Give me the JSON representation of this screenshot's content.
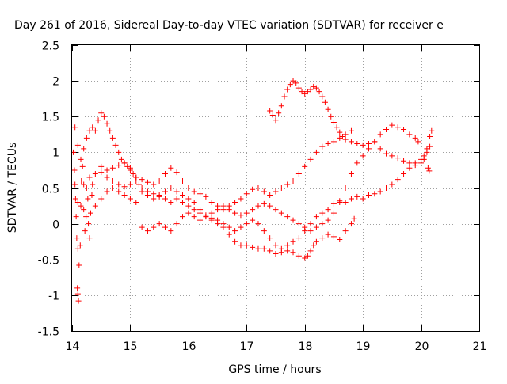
{
  "chart_data": {
    "type": "scatter",
    "title": "Day 261 of 2016, Sidereal Day-to-day VTEC variation (SDTVAR) for receiver e",
    "xlabel": "GPS time / hours",
    "ylabel": "SDTVAR / TECUs",
    "xlim": [
      14,
      21
    ],
    "ylim": [
      -1.5,
      2.5
    ],
    "x_ticks": [
      14,
      15,
      16,
      17,
      18,
      19,
      20,
      21
    ],
    "y_ticks": [
      -1.5,
      -1,
      -0.5,
      0,
      0.5,
      1,
      1.5,
      2,
      2.5
    ],
    "x_tick_labels": [
      "14",
      "15",
      "16",
      "17",
      "18",
      "19",
      "20",
      "21"
    ],
    "y_tick_labels": [
      "-1.5",
      "-1",
      "-0.5",
      "0",
      "0.5",
      "1",
      "1.5",
      "2",
      "2.5"
    ],
    "grid": true,
    "marker": "plus",
    "color": "#ff0000",
    "series": [
      {
        "points": [
          [
            14.05,
            1.35
          ],
          [
            14.1,
            1.1
          ],
          [
            14.15,
            0.9
          ],
          [
            14.2,
            1.05
          ],
          [
            14.25,
            1.2
          ],
          [
            14.3,
            1.3
          ],
          [
            14.35,
            1.35
          ],
          [
            14.4,
            1.3
          ],
          [
            14.45,
            1.45
          ],
          [
            14.5,
            1.55
          ],
          [
            14.55,
            1.5
          ],
          [
            14.6,
            1.4
          ],
          [
            14.65,
            1.3
          ],
          [
            14.7,
            1.2
          ],
          [
            14.75,
            1.1
          ],
          [
            14.8,
            1.0
          ],
          [
            14.85,
            0.9
          ],
          [
            14.9,
            0.85
          ],
          [
            14.95,
            0.8
          ],
          [
            15.0,
            0.75
          ],
          [
            15.05,
            0.7
          ],
          [
            15.1,
            0.65
          ],
          [
            15.15,
            0.55
          ],
          [
            15.2,
            0.45
          ],
          [
            15.3,
            0.4
          ],
          [
            15.4,
            0.35
          ],
          [
            15.5,
            0.4
          ],
          [
            15.6,
            0.45
          ],
          [
            15.7,
            0.5
          ],
          [
            15.8,
            0.45
          ],
          [
            15.9,
            0.4
          ],
          [
            16.0,
            0.35
          ],
          [
            16.1,
            0.3
          ],
          [
            16.2,
            0.2
          ],
          [
            16.3,
            0.1
          ],
          [
            16.4,
            0.05
          ],
          [
            16.5,
            0.0
          ],
          [
            16.6,
            -0.05
          ],
          [
            16.7,
            -0.15
          ],
          [
            16.8,
            -0.25
          ],
          [
            16.9,
            -0.3
          ],
          [
            17.0,
            -0.3
          ],
          [
            17.1,
            -0.33
          ],
          [
            17.2,
            -0.35
          ],
          [
            17.3,
            -0.35
          ],
          [
            17.4,
            -0.38
          ],
          [
            17.5,
            -0.42
          ],
          [
            17.6,
            -0.4
          ],
          [
            17.7,
            -0.38
          ],
          [
            17.8,
            -0.4
          ],
          [
            17.9,
            -0.45
          ],
          [
            18.0,
            -0.48
          ],
          [
            18.05,
            -0.45
          ],
          [
            18.1,
            -0.38
          ],
          [
            18.15,
            -0.3
          ],
          [
            18.2,
            -0.25
          ],
          [
            18.3,
            -0.2
          ],
          [
            18.4,
            -0.15
          ],
          [
            18.5,
            -0.18
          ],
          [
            18.6,
            -0.22
          ],
          [
            18.7,
            -0.1
          ],
          [
            18.8,
            0.0
          ],
          [
            18.85,
            0.07
          ]
        ]
      },
      {
        "points": [
          [
            14.1,
            0.3
          ],
          [
            14.2,
            0.55
          ],
          [
            14.3,
            0.65
          ],
          [
            14.4,
            0.7
          ],
          [
            14.5,
            0.72
          ],
          [
            14.6,
            0.65
          ],
          [
            14.7,
            0.6
          ],
          [
            14.8,
            0.55
          ],
          [
            14.9,
            0.52
          ],
          [
            15.0,
            0.55
          ],
          [
            15.1,
            0.6
          ],
          [
            15.2,
            0.62
          ],
          [
            15.3,
            0.58
          ],
          [
            15.4,
            0.55
          ],
          [
            15.5,
            0.6
          ],
          [
            15.6,
            0.7
          ],
          [
            15.7,
            0.78
          ],
          [
            15.8,
            0.72
          ],
          [
            15.9,
            0.6
          ],
          [
            16.0,
            0.5
          ],
          [
            16.1,
            0.45
          ],
          [
            16.2,
            0.42
          ],
          [
            16.3,
            0.38
          ],
          [
            16.4,
            0.3
          ],
          [
            16.5,
            0.25
          ],
          [
            16.6,
            0.2
          ],
          [
            16.7,
            0.25
          ],
          [
            16.8,
            0.3
          ],
          [
            16.9,
            0.35
          ],
          [
            17.0,
            0.42
          ],
          [
            17.1,
            0.48
          ],
          [
            17.2,
            0.5
          ],
          [
            17.3,
            0.45
          ],
          [
            17.4,
            0.4
          ],
          [
            17.5,
            0.45
          ],
          [
            17.6,
            0.5
          ],
          [
            17.7,
            0.55
          ],
          [
            17.8,
            0.6
          ],
          [
            17.9,
            0.7
          ],
          [
            18.0,
            0.8
          ],
          [
            18.1,
            0.9
          ],
          [
            18.2,
            1.0
          ],
          [
            18.3,
            1.08
          ],
          [
            18.4,
            1.12
          ],
          [
            18.5,
            1.15
          ],
          [
            18.6,
            1.2
          ],
          [
            18.7,
            1.25
          ],
          [
            18.8,
            1.3
          ]
        ]
      },
      {
        "points": [
          [
            14.4,
            0.25
          ],
          [
            14.5,
            0.35
          ],
          [
            14.6,
            0.45
          ],
          [
            14.7,
            0.5
          ],
          [
            14.8,
            0.45
          ],
          [
            14.9,
            0.4
          ],
          [
            15.0,
            0.35
          ],
          [
            15.1,
            0.3
          ],
          [
            15.2,
            -0.05
          ],
          [
            15.3,
            -0.1
          ],
          [
            15.4,
            -0.05
          ],
          [
            15.5,
            0.0
          ],
          [
            15.6,
            -0.05
          ],
          [
            15.7,
            -0.1
          ],
          [
            15.8,
            0.0
          ],
          [
            15.9,
            0.1
          ],
          [
            16.0,
            0.15
          ],
          [
            16.1,
            0.1
          ],
          [
            16.2,
            0.05
          ],
          [
            16.3,
            0.1
          ],
          [
            16.4,
            0.15
          ],
          [
            16.5,
            0.2
          ],
          [
            16.6,
            0.25
          ],
          [
            16.7,
            0.2
          ],
          [
            16.8,
            0.15
          ],
          [
            16.9,
            0.12
          ],
          [
            17.0,
            0.15
          ],
          [
            17.1,
            0.2
          ],
          [
            17.2,
            0.25
          ],
          [
            17.3,
            0.28
          ],
          [
            17.4,
            0.25
          ],
          [
            17.5,
            0.2
          ],
          [
            17.6,
            0.15
          ],
          [
            17.7,
            0.1
          ],
          [
            17.8,
            0.05
          ],
          [
            17.9,
            0.0
          ],
          [
            18.0,
            -0.05
          ],
          [
            18.1,
            -0.1
          ],
          [
            18.2,
            -0.05
          ],
          [
            18.3,
            0.0
          ],
          [
            18.4,
            0.05
          ],
          [
            18.5,
            0.15
          ],
          [
            18.6,
            0.3
          ],
          [
            18.7,
            0.5
          ],
          [
            18.8,
            0.7
          ],
          [
            18.9,
            0.85
          ],
          [
            19.0,
            0.95
          ],
          [
            19.1,
            1.05
          ],
          [
            19.2,
            1.15
          ],
          [
            19.3,
            1.25
          ],
          [
            19.4,
            1.32
          ],
          [
            19.5,
            1.38
          ],
          [
            19.6,
            1.35
          ],
          [
            19.7,
            1.32
          ],
          [
            19.8,
            1.25
          ],
          [
            19.9,
            1.2
          ],
          [
            19.95,
            1.15
          ]
        ]
      },
      {
        "points": [
          [
            14.5,
            0.8
          ],
          [
            14.6,
            0.75
          ],
          [
            14.7,
            0.78
          ],
          [
            14.8,
            0.82
          ],
          [
            14.9,
            0.85
          ],
          [
            15.0,
            0.78
          ],
          [
            15.1,
            0.65
          ],
          [
            15.2,
            0.5
          ],
          [
            15.3,
            0.45
          ],
          [
            15.4,
            0.42
          ],
          [
            15.5,
            0.38
          ],
          [
            15.6,
            0.35
          ],
          [
            15.7,
            0.3
          ],
          [
            15.8,
            0.35
          ],
          [
            15.9,
            0.3
          ],
          [
            16.0,
            0.25
          ],
          [
            16.1,
            0.2
          ],
          [
            16.2,
            0.15
          ],
          [
            16.3,
            0.12
          ],
          [
            16.4,
            0.08
          ],
          [
            16.5,
            0.05
          ],
          [
            16.6,
            0.0
          ],
          [
            16.7,
            -0.05
          ],
          [
            16.8,
            -0.1
          ],
          [
            16.9,
            -0.05
          ],
          [
            17.0,
            0.0
          ],
          [
            17.1,
            0.05
          ],
          [
            17.2,
            0.0
          ],
          [
            17.3,
            -0.1
          ],
          [
            17.4,
            -0.2
          ],
          [
            17.5,
            -0.3
          ],
          [
            17.6,
            -0.35
          ],
          [
            17.7,
            -0.3
          ],
          [
            17.8,
            -0.25
          ],
          [
            17.9,
            -0.2
          ],
          [
            18.0,
            -0.1
          ],
          [
            18.1,
            0.0
          ],
          [
            18.2,
            0.1
          ],
          [
            18.3,
            0.15
          ],
          [
            18.4,
            0.2
          ],
          [
            18.5,
            0.28
          ],
          [
            18.6,
            0.32
          ],
          [
            18.7,
            0.3
          ],
          [
            18.8,
            0.35
          ],
          [
            18.9,
            0.38
          ],
          [
            19.0,
            0.35
          ],
          [
            19.1,
            0.4
          ],
          [
            19.2,
            0.42
          ],
          [
            19.3,
            0.45
          ],
          [
            19.4,
            0.5
          ],
          [
            19.5,
            0.55
          ],
          [
            19.6,
            0.62
          ],
          [
            19.7,
            0.7
          ],
          [
            19.8,
            0.78
          ],
          [
            19.9,
            0.85
          ],
          [
            20.0,
            0.9
          ],
          [
            20.05,
            0.95
          ],
          [
            20.1,
            1.0
          ],
          [
            20.15,
            1.08
          ]
        ]
      },
      {
        "points": [
          [
            17.4,
            1.58
          ],
          [
            17.45,
            1.52
          ],
          [
            17.5,
            1.45
          ],
          [
            17.55,
            1.55
          ],
          [
            17.6,
            1.65
          ],
          [
            17.65,
            1.78
          ],
          [
            17.7,
            1.88
          ],
          [
            17.75,
            1.95
          ],
          [
            17.8,
            2.0
          ],
          [
            17.85,
            1.97
          ],
          [
            17.9,
            1.9
          ],
          [
            17.95,
            1.85
          ],
          [
            18.0,
            1.82
          ],
          [
            18.05,
            1.85
          ],
          [
            18.1,
            1.88
          ],
          [
            18.15,
            1.92
          ],
          [
            18.2,
            1.9
          ],
          [
            18.25,
            1.85
          ],
          [
            18.3,
            1.78
          ],
          [
            18.35,
            1.7
          ],
          [
            18.4,
            1.6
          ],
          [
            18.45,
            1.5
          ],
          [
            18.5,
            1.42
          ],
          [
            18.55,
            1.35
          ],
          [
            18.6,
            1.28
          ],
          [
            18.65,
            1.22
          ],
          [
            18.7,
            1.18
          ],
          [
            18.8,
            1.15
          ],
          [
            18.9,
            1.12
          ],
          [
            19.0,
            1.1
          ],
          [
            19.1,
            1.12
          ],
          [
            19.2,
            1.15
          ],
          [
            19.3,
            1.05
          ],
          [
            19.4,
            0.98
          ],
          [
            19.5,
            0.95
          ],
          [
            19.6,
            0.92
          ],
          [
            19.7,
            0.88
          ],
          [
            19.8,
            0.85
          ],
          [
            19.9,
            0.82
          ],
          [
            20.0,
            0.85
          ],
          [
            20.05,
            0.9
          ],
          [
            20.1,
            1.05
          ],
          [
            20.15,
            1.22
          ],
          [
            20.18,
            1.3
          ],
          [
            20.12,
            0.78
          ],
          [
            20.14,
            0.74
          ]
        ]
      },
      {
        "points": [
          [
            14.02,
            1.0
          ],
          [
            14.04,
            0.75
          ],
          [
            14.05,
            0.55
          ],
          [
            14.06,
            0.35
          ],
          [
            14.07,
            0.1
          ],
          [
            14.08,
            -0.2
          ],
          [
            14.1,
            -0.35
          ],
          [
            14.09,
            -0.9
          ],
          [
            14.1,
            -0.98
          ],
          [
            14.11,
            -1.08
          ],
          [
            14.12,
            -0.58
          ],
          [
            14.14,
            -0.3
          ],
          [
            14.15,
            0.25
          ],
          [
            14.16,
            0.6
          ],
          [
            14.18,
            0.8
          ],
          [
            14.2,
            0.2
          ],
          [
            14.22,
            -0.1
          ],
          [
            14.24,
            0.1
          ],
          [
            14.25,
            0.5
          ],
          [
            14.27,
            0.35
          ],
          [
            14.28,
            0.0
          ],
          [
            14.3,
            -0.2
          ],
          [
            14.32,
            0.15
          ],
          [
            14.34,
            0.4
          ],
          [
            14.35,
            0.55
          ]
        ]
      }
    ]
  }
}
